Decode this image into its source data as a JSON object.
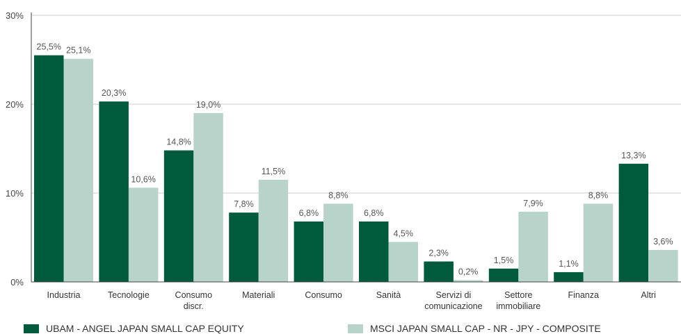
{
  "chart_data": {
    "type": "bar",
    "categories": [
      [
        "Industria"
      ],
      [
        "Tecnologie"
      ],
      [
        "Consumo",
        "discr."
      ],
      [
        "Materiali"
      ],
      [
        "Consumo"
      ],
      [
        "Sanità"
      ],
      [
        "Servizi di",
        "comunicazione"
      ],
      [
        "Settore",
        "immobiliare"
      ],
      [
        "Finanza"
      ],
      [
        "Altri"
      ]
    ],
    "series": [
      {
        "name": "UBAM - ANGEL JAPAN SMALL CAP EQUITY",
        "color": "#005a3c",
        "values": [
          25.5,
          20.3,
          14.8,
          7.8,
          6.8,
          6.8,
          2.3,
          1.5,
          1.1,
          13.3
        ],
        "labels": [
          "25,5%",
          "20,3%",
          "14,8%",
          "7,8%",
          "6,8%",
          "6,8%",
          "2,3%",
          "1,5%",
          "1,1%",
          "13,3%"
        ]
      },
      {
        "name": "MSCI JAPAN SMALL CAP - NR - JPY - COMPOSITE",
        "color": "#b8d3c9",
        "values": [
          25.1,
          10.6,
          19.0,
          11.5,
          8.8,
          4.5,
          0.2,
          7.9,
          8.8,
          3.6
        ],
        "labels": [
          "25,1%",
          "10,6%",
          "19,0%",
          "11,5%",
          "8,8%",
          "4,5%",
          "0,2%",
          "7,9%",
          "8,8%",
          "3,6%"
        ]
      }
    ],
    "yticks": [
      0,
      10,
      20,
      30
    ],
    "ytick_labels": [
      "0%",
      "10%",
      "20%",
      "30%"
    ],
    "ylim": [
      0,
      30
    ],
    "grid": true,
    "legend_position": "bottom"
  }
}
